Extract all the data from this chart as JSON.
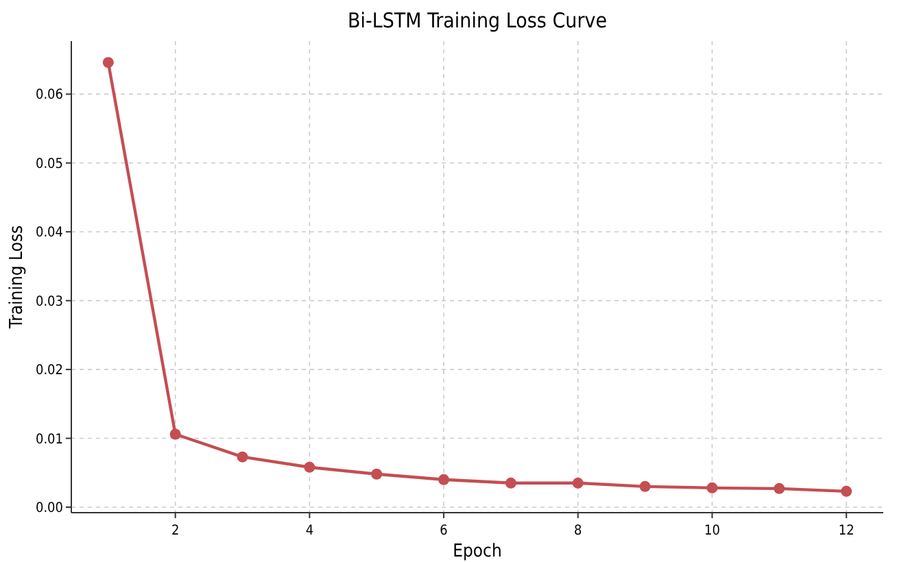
{
  "chart_data": {
    "type": "line",
    "title": "Bi-LSTM Training Loss Curve",
    "xlabel": "Epoch",
    "ylabel": "Training Loss",
    "x": [
      1,
      2,
      3,
      4,
      5,
      6,
      7,
      8,
      9,
      10,
      11,
      12
    ],
    "series": [
      {
        "color": "#c44e52",
        "values": [
          0.0646,
          0.0106,
          0.0073,
          0.0058,
          0.0048,
          0.004,
          0.0035,
          0.0035,
          0.003,
          0.0028,
          0.0027,
          0.0023
        ]
      }
    ],
    "xlim": [
      0.45,
      12.55
    ],
    "ylim": [
      -0.0008,
      0.0677
    ],
    "xticks": [
      2,
      4,
      6,
      8,
      10,
      12
    ],
    "yticks": [
      {
        "value": 0,
        "label": "0.00"
      },
      {
        "value": 0.01,
        "label": "0.01"
      },
      {
        "value": 0.02,
        "label": "0.02"
      },
      {
        "value": 0.03,
        "label": "0.03"
      },
      {
        "value": 0.04,
        "label": "0.04"
      },
      {
        "value": 0.05,
        "label": "0.05"
      },
      {
        "value": 0.06,
        "label": "0.06"
      }
    ],
    "grid": true,
    "marker": "circle",
    "line_style": "solid"
  }
}
